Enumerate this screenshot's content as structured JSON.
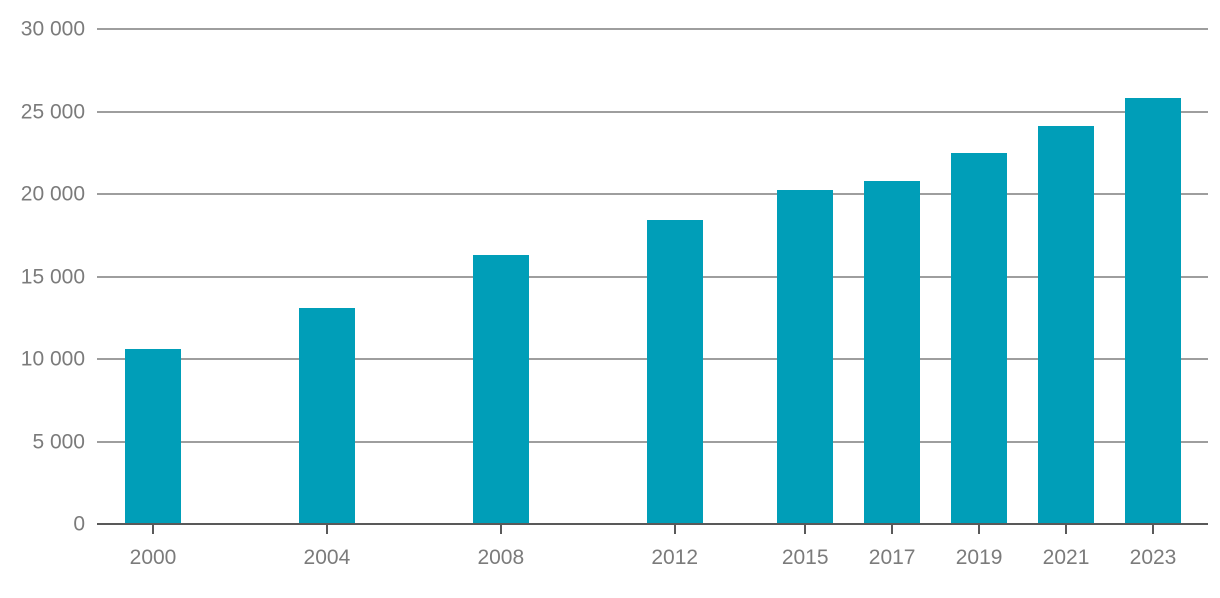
{
  "chart_data": {
    "type": "bar",
    "title": "",
    "xlabel": "",
    "ylabel": "",
    "categories": [
      "2000",
      "2004",
      "2008",
      "2012",
      "2015",
      "2017",
      "2019",
      "2021",
      "2023"
    ],
    "x_years": [
      2000,
      2004,
      2008,
      2012,
      2015,
      2017,
      2019,
      2021,
      2023
    ],
    "values": [
      10600,
      13100,
      16300,
      18400,
      20250,
      20800,
      22500,
      24100,
      25800
    ],
    "x_scale": "linear-time",
    "ylim": [
      0,
      30000
    ],
    "ytick_step": 5000,
    "ytick_values": [
      0,
      5000,
      10000,
      15000,
      20000,
      25000,
      30000
    ],
    "ytick_labels": [
      "0",
      "5 000",
      "10 000",
      "15 000",
      "20 000",
      "25 000",
      "30 000"
    ],
    "grid": true,
    "legend": "none",
    "colors": {
      "bar": "#009EB8",
      "gridline": "#9E9E9E",
      "axis_line": "#595959",
      "tick": "#595959",
      "label_text": "#7B7B7B",
      "background": "#FFFFFF"
    }
  }
}
